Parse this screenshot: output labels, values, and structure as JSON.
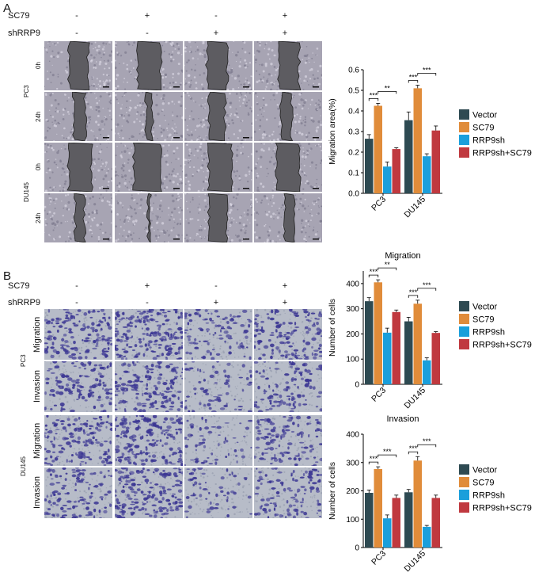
{
  "panels": {
    "a": {
      "letter": "A",
      "conditions": [
        {
          "label": "SC79",
          "signs": [
            "-",
            "+",
            "-",
            "+"
          ]
        },
        {
          "label": "shRRP9",
          "signs": [
            "-",
            "-",
            "+",
            "+"
          ]
        }
      ],
      "cell_lines": [
        "PC3",
        "DU145"
      ],
      "timepoints": [
        "0h",
        "24h"
      ]
    },
    "b": {
      "letter": "B",
      "conditions": [
        {
          "label": "SC79",
          "signs": [
            "-",
            "+",
            "-",
            "+"
          ]
        },
        {
          "label": "shRRP9",
          "signs": [
            "-",
            "-",
            "+",
            "+"
          ]
        }
      ],
      "cell_lines": [
        "PC3",
        "DU145"
      ],
      "assays": [
        "Migration",
        "Invasion"
      ]
    }
  },
  "colors": {
    "vector": "#2e4a52",
    "sc79": "#e08c3a",
    "rrp9sh": "#1a9fdb",
    "combo": "#c0393f",
    "wound_field": "#a7a4b3",
    "wound_gap": "#5d5c61",
    "transwell_bg": "#b7bcc8",
    "stain": "#3b3693"
  },
  "chart_data": [
    {
      "type": "bar",
      "title": "",
      "ylabel": "Migration area(%)",
      "xlabel": "",
      "ylim": [
        0.0,
        0.6
      ],
      "yticks": [
        "0.0",
        "0.1",
        "0.2",
        "0.3",
        "0.4",
        "0.5",
        "0.6"
      ],
      "categories": [
        "PC3",
        "DU145"
      ],
      "legend_position": "right",
      "series": [
        {
          "name": "Vector",
          "values": [
            0.265,
            0.355
          ],
          "errors": [
            0.02,
            0.04
          ]
        },
        {
          "name": "SC79",
          "values": [
            0.425,
            0.51
          ],
          "errors": [
            0.012,
            0.015
          ]
        },
        {
          "name": "RRP9sh",
          "values": [
            0.13,
            0.18
          ],
          "errors": [
            0.022,
            0.012
          ]
        },
        {
          "name": "RRP9sh+SC79",
          "values": [
            0.215,
            0.305
          ],
          "errors": [
            0.006,
            0.022
          ]
        }
      ],
      "annotations": [
        {
          "category": "PC3",
          "from": "Vector",
          "to": "SC79",
          "label": "***"
        },
        {
          "category": "PC3",
          "from": "SC79",
          "to": "RRP9sh+SC79",
          "label": "**"
        },
        {
          "category": "DU145",
          "from": "Vector",
          "to": "SC79",
          "label": "***"
        },
        {
          "category": "DU145",
          "from": "SC79",
          "to": "RRP9sh+SC79",
          "label": "***"
        }
      ]
    },
    {
      "type": "bar",
      "title": "Migration",
      "ylabel": "Number of cells",
      "xlabel": "",
      "ylim": [
        0,
        450
      ],
      "yticks": [
        "0",
        "100",
        "200",
        "300",
        "400"
      ],
      "categories": [
        "PC3",
        "DU145"
      ],
      "legend_position": "right",
      "series": [
        {
          "name": "Vector",
          "values": [
            330,
            250
          ],
          "errors": [
            14,
            16
          ]
        },
        {
          "name": "SC79",
          "values": [
            405,
            320
          ],
          "errors": [
            10,
            14
          ]
        },
        {
          "name": "RRP9sh",
          "values": [
            205,
            95
          ],
          "errors": [
            18,
            10
          ]
        },
        {
          "name": "RRP9sh+SC79",
          "values": [
            287,
            204
          ],
          "errors": [
            8,
            5
          ]
        }
      ],
      "annotations": [
        {
          "category": "PC3",
          "from": "Vector",
          "to": "SC79",
          "label": "***"
        },
        {
          "category": "PC3",
          "from": "SC79",
          "to": "RRP9sh+SC79",
          "label": "**"
        },
        {
          "category": "DU145",
          "from": "Vector",
          "to": "SC79",
          "label": "***"
        },
        {
          "category": "DU145",
          "from": "SC79",
          "to": "RRP9sh+SC79",
          "label": "***"
        }
      ]
    },
    {
      "type": "bar",
      "title": "Invasion",
      "ylabel": "Number of cells",
      "xlabel": "",
      "ylim": [
        0,
        400
      ],
      "yticks": [
        "0",
        "100",
        "200",
        "300",
        "400"
      ],
      "categories": [
        "PC3",
        "DU145"
      ],
      "legend_position": "right",
      "series": [
        {
          "name": "Vector",
          "values": [
            193,
            195
          ],
          "errors": [
            10,
            10
          ]
        },
        {
          "name": "SC79",
          "values": [
            277,
            307
          ],
          "errors": [
            8,
            14
          ]
        },
        {
          "name": "RRP9sh",
          "values": [
            103,
            73
          ],
          "errors": [
            12,
            5
          ]
        },
        {
          "name": "RRP9sh+SC79",
          "values": [
            175,
            175
          ],
          "errors": [
            10,
            10
          ]
        }
      ],
      "annotations": [
        {
          "category": "PC3",
          "from": "Vector",
          "to": "SC79",
          "label": "***"
        },
        {
          "category": "PC3",
          "from": "SC79",
          "to": "RRP9sh+SC79",
          "label": "***"
        },
        {
          "category": "DU145",
          "from": "Vector",
          "to": "SC79",
          "label": "***"
        },
        {
          "category": "DU145",
          "from": "SC79",
          "to": "RRP9sh+SC79",
          "label": "***"
        }
      ]
    }
  ]
}
